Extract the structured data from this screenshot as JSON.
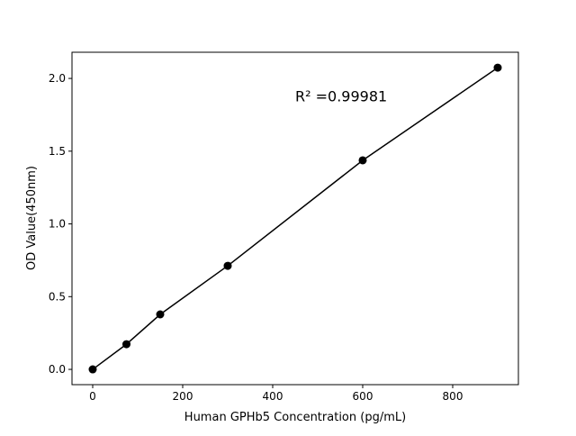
{
  "chart_data": {
    "type": "line",
    "title": "",
    "xlabel": "Human GPHb5 Concentration (pg/mL)",
    "ylabel": "OD Value(450nm)",
    "x": [
      0,
      75,
      150,
      300,
      600,
      900
    ],
    "series": [
      {
        "values": [
          0.0,
          0.173,
          0.378,
          0.712,
          1.437,
          2.074
        ],
        "color": "#000000",
        "marker": "circle"
      }
    ],
    "xlim": [
      -46,
      946
    ],
    "ylim": [
      -0.105,
      2.18
    ],
    "xticks": [
      0,
      200,
      400,
      600,
      800
    ],
    "xtick_labels": [
      "0",
      "200",
      "400",
      "600",
      "800"
    ],
    "yticks": [
      0.0,
      0.5,
      1.0,
      1.5,
      2.0
    ],
    "ytick_labels": [
      "0.0",
      "0.5",
      "1.0",
      "1.5",
      "2.0"
    ],
    "grid": false,
    "annotation": {
      "text": "R² =0.99981",
      "x": 450,
      "y": 1.88
    }
  }
}
